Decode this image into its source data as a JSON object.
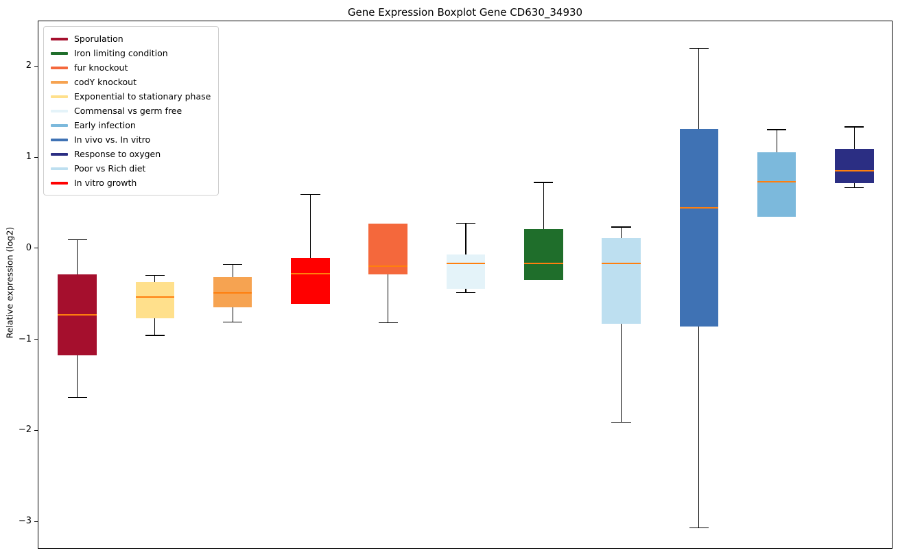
{
  "title": "Gene Expression Boxplot Gene CD630_34930",
  "chart_data": {
    "type": "boxplot",
    "title": "Gene Expression Boxplot Gene CD630_34930",
    "xlabel": "",
    "ylabel": "Relative expression (log2)",
    "ylim": [
      -3.3,
      2.5
    ],
    "yticks": [
      2,
      1,
      0,
      -1,
      -2,
      -3
    ],
    "grid": false,
    "legend_position": "upper left",
    "median_color": "#FF7F0E",
    "whisker_color": "#000000",
    "legend": [
      {
        "label": "Sporulation",
        "color": "#A50F2D"
      },
      {
        "label": "Iron limiting condition",
        "color": "#1F6E2B"
      },
      {
        "label": "fur knockout",
        "color": "#F4683C"
      },
      {
        "label": "codY knockout",
        "color": "#F6A351"
      },
      {
        "label": "Exponential to stationary phase",
        "color": "#FFE08C"
      },
      {
        "label": "Commensal vs germ free",
        "color": "#E4F3F9"
      },
      {
        "label": "Early infection",
        "color": "#7CB9DC"
      },
      {
        "label": "In vivo vs. In vitro",
        "color": "#3F72B4"
      },
      {
        "label": "Response to oxygen",
        "color": "#2B2E83"
      },
      {
        "label": "Poor vs Rich diet",
        "color": "#BDDFF0"
      },
      {
        "label": "In vitro growth",
        "color": "#FF0000"
      }
    ],
    "boxes": [
      {
        "label": "Sporulation",
        "color": "#A50F2D",
        "whislo": -1.63,
        "q1": -1.17,
        "med": -0.72,
        "q3": -0.28,
        "whishi": 0.1
      },
      {
        "label": "Exponential to stationary phase",
        "color": "#FFE08C",
        "whislo": -0.95,
        "q1": -0.76,
        "med": -0.53,
        "q3": -0.36,
        "whishi": -0.29
      },
      {
        "label": "codY knockout",
        "color": "#F6A351",
        "whislo": -0.8,
        "q1": -0.64,
        "med": -0.48,
        "q3": -0.31,
        "whishi": -0.17
      },
      {
        "label": "In vitro growth",
        "color": "#FF0000",
        "whislo": -0.6,
        "q1": -0.6,
        "med": -0.27,
        "q3": -0.1,
        "whishi": 0.6
      },
      {
        "label": "fur knockout",
        "color": "#F4683C",
        "whislo": -0.81,
        "q1": -0.28,
        "med": -0.19,
        "q3": 0.28,
        "whishi": 0.28
      },
      {
        "label": "Commensal vs germ free",
        "color": "#E4F3F9",
        "whislo": -0.48,
        "q1": -0.44,
        "med": -0.16,
        "q3": -0.06,
        "whishi": 0.28
      },
      {
        "label": "Iron limiting condition",
        "color": "#1F6E2B",
        "whislo": -0.34,
        "q1": -0.34,
        "med": -0.16,
        "q3": 0.22,
        "whishi": 0.73
      },
      {
        "label": "Poor vs Rich diet",
        "color": "#BDDFF0",
        "whislo": -1.9,
        "q1": -0.82,
        "med": -0.16,
        "q3": 0.12,
        "whishi": 0.24
      },
      {
        "label": "In vivo vs. In vitro",
        "color": "#3F72B4",
        "whislo": -3.06,
        "q1": -0.85,
        "med": 0.45,
        "q3": 1.32,
        "whishi": 2.2
      },
      {
        "label": "Early infection",
        "color": "#7CB9DC",
        "whislo": 0.35,
        "q1": 0.35,
        "med": 0.74,
        "q3": 1.06,
        "whishi": 1.31
      },
      {
        "label": "Response to oxygen",
        "color": "#2B2E83",
        "whislo": 0.67,
        "q1": 0.72,
        "med": 0.86,
        "q3": 1.1,
        "whishi": 1.34
      }
    ]
  }
}
